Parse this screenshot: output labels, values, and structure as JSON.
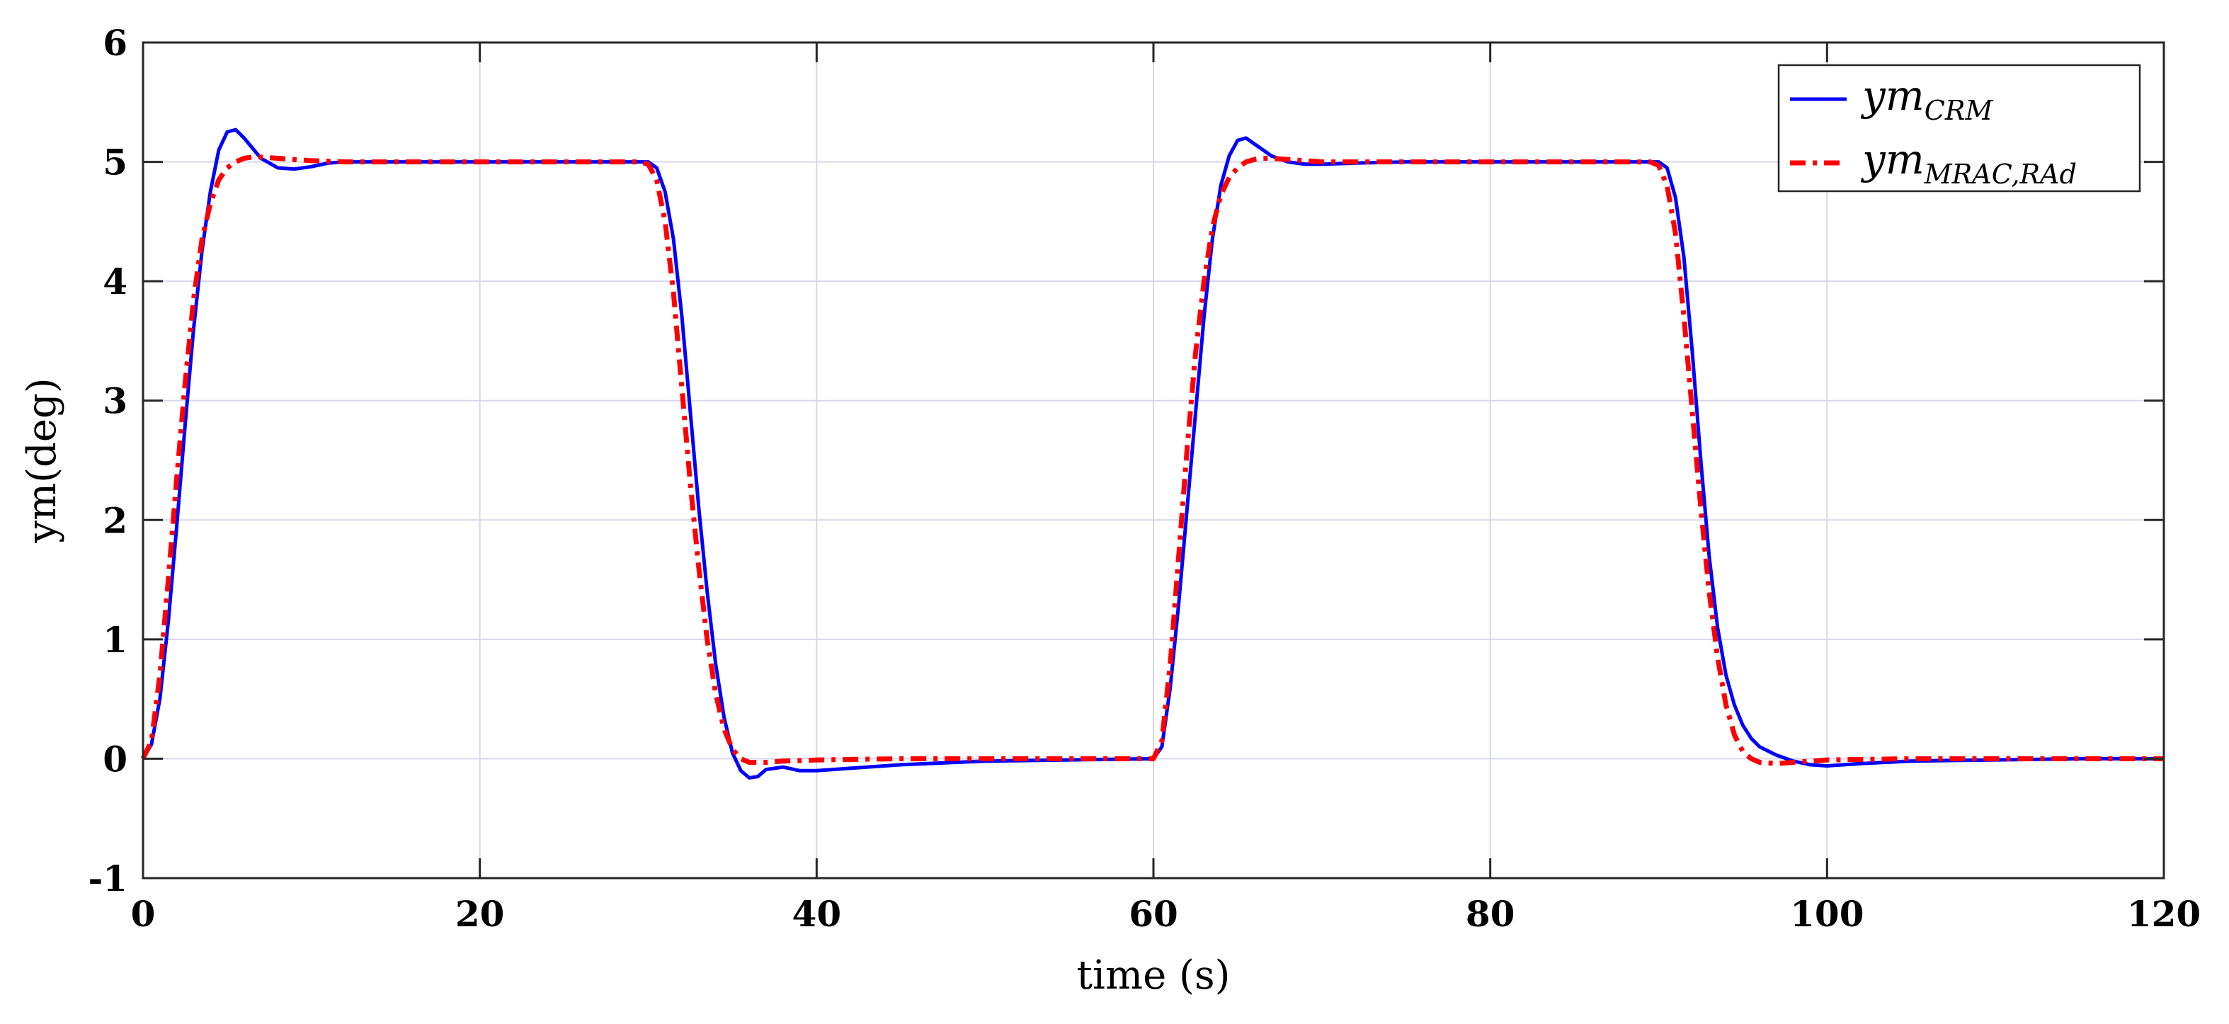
{
  "chart_data": {
    "type": "line",
    "xlabel": "time (s)",
    "ylabel": "ym(deg)",
    "xlim": [
      0,
      120
    ],
    "ylim": [
      -1,
      6
    ],
    "xticks": [
      0,
      20,
      40,
      60,
      80,
      100,
      120
    ],
    "yticks": [
      -1,
      0,
      1,
      2,
      3,
      4,
      5,
      6
    ],
    "grid": true,
    "legend_position": "top-right",
    "series": [
      {
        "name": "ym_CRM",
        "legend_main": "ym",
        "legend_sub": "CRM",
        "color": "#0000ff",
        "style": "solid",
        "x": [
          0,
          0.5,
          1,
          1.5,
          2,
          2.5,
          3,
          3.5,
          4,
          4.5,
          5,
          5.5,
          6,
          7,
          8,
          9,
          10,
          11,
          12,
          14,
          16,
          20,
          25,
          29.5,
          30,
          30.5,
          31,
          31.5,
          32,
          32.5,
          33,
          33.5,
          34,
          34.5,
          35,
          35.5,
          36,
          36.5,
          37,
          38,
          39,
          40,
          42,
          45,
          50,
          55,
          60,
          60.5,
          61,
          61.5,
          62,
          62.5,
          63,
          63.5,
          64,
          64.5,
          65,
          65.5,
          66,
          67,
          68,
          69,
          70,
          72,
          75,
          80,
          85,
          89.5,
          90,
          90.5,
          91,
          91.5,
          92,
          92.5,
          93,
          93.5,
          94,
          94.5,
          95,
          95.5,
          96,
          97,
          98,
          99,
          100,
          102,
          105,
          110,
          115,
          120
        ],
        "y": [
          0,
          0.12,
          0.5,
          1.15,
          1.95,
          2.8,
          3.6,
          4.25,
          4.75,
          5.1,
          5.25,
          5.27,
          5.2,
          5.03,
          4.95,
          4.94,
          4.96,
          4.99,
          5.0,
          5.0,
          5.0,
          5.0,
          5.0,
          5.0,
          5.0,
          4.95,
          4.75,
          4.35,
          3.7,
          2.9,
          2.1,
          1.4,
          0.8,
          0.35,
          0.05,
          -0.1,
          -0.16,
          -0.15,
          -0.09,
          -0.07,
          -0.1,
          -0.1,
          -0.08,
          -0.05,
          -0.02,
          -0.01,
          0,
          0.1,
          0.6,
          1.3,
          2.1,
          2.9,
          3.7,
          4.35,
          4.8,
          5.05,
          5.18,
          5.2,
          5.15,
          5.05,
          5.0,
          4.98,
          4.98,
          4.99,
          5.0,
          5.0,
          5.0,
          5.0,
          5.0,
          4.95,
          4.7,
          4.2,
          3.4,
          2.5,
          1.7,
          1.1,
          0.7,
          0.45,
          0.28,
          0.17,
          0.1,
          0.03,
          -0.02,
          -0.05,
          -0.06,
          -0.04,
          -0.02,
          -0.01,
          0,
          0
        ]
      },
      {
        "name": "ym_MRAC,RAd",
        "legend_main": "ym",
        "legend_sub": "MRAC,RAd",
        "color": "#ff0000",
        "style": "dashdot",
        "x": [
          0,
          0.5,
          1,
          1.5,
          2,
          2.5,
          3,
          3.5,
          4,
          4.5,
          5,
          5.5,
          6,
          6.5,
          7,
          8,
          9,
          10,
          12,
          15,
          20,
          25,
          29.5,
          30,
          30.5,
          31,
          31.5,
          32,
          32.5,
          33,
          33.5,
          34,
          34.5,
          35,
          35.5,
          36,
          36.5,
          37,
          38,
          40,
          45,
          50,
          55,
          60,
          60.5,
          61,
          61.5,
          62,
          62.5,
          63,
          63.5,
          64,
          64.5,
          65,
          65.5,
          66,
          66.5,
          67,
          68,
          69,
          70,
          72,
          75,
          80,
          85,
          89.5,
          90,
          90.5,
          91,
          91.5,
          92,
          92.5,
          93,
          93.5,
          94,
          94.5,
          95,
          95.5,
          96,
          97,
          98,
          99,
          100,
          105,
          110,
          115,
          120
        ],
        "y": [
          0,
          0.15,
          0.7,
          1.5,
          2.35,
          3.15,
          3.85,
          4.35,
          4.65,
          4.85,
          4.95,
          5.0,
          5.03,
          5.04,
          5.04,
          5.03,
          5.02,
          5.01,
          5.0,
          5.0,
          5.0,
          5.0,
          5.0,
          4.98,
          4.85,
          4.5,
          3.9,
          3.1,
          2.3,
          1.6,
          1.0,
          0.55,
          0.25,
          0.08,
          0.0,
          -0.03,
          -0.03,
          -0.03,
          -0.02,
          -0.01,
          0,
          0,
          0,
          0,
          0.15,
          0.8,
          1.7,
          2.6,
          3.4,
          4.0,
          4.45,
          4.72,
          4.87,
          4.95,
          5.0,
          5.02,
          5.03,
          5.03,
          5.02,
          5.01,
          5.0,
          5.0,
          5.0,
          5.0,
          5.0,
          5.0,
          4.97,
          4.8,
          4.4,
          3.7,
          2.9,
          2.1,
          1.4,
          0.85,
          0.45,
          0.2,
          0.06,
          0.0,
          -0.03,
          -0.04,
          -0.03,
          -0.02,
          -0.01,
          0,
          0,
          0,
          0
        ]
      }
    ]
  }
}
